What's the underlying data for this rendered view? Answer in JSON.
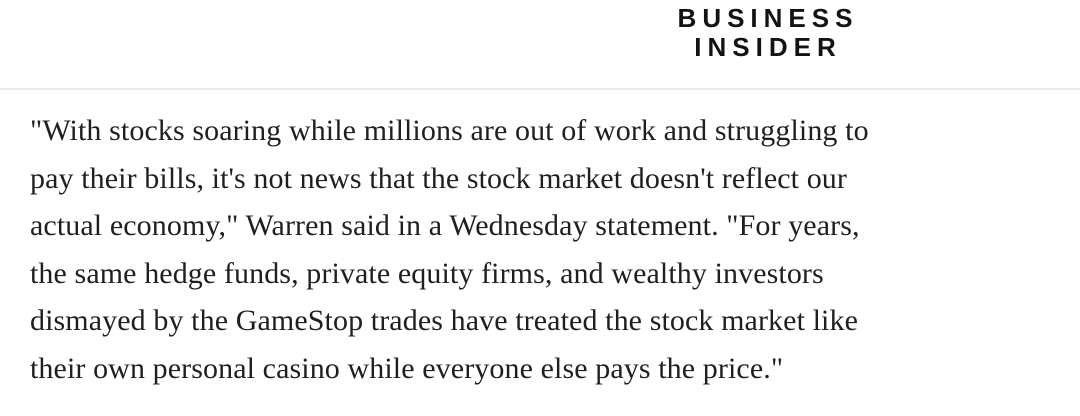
{
  "masthead": {
    "logo_line1": "BUSINESS",
    "logo_line2": "INSIDER",
    "logo_color": "#131313"
  },
  "divider": {
    "color": "#e9e9e9"
  },
  "article": {
    "text_color": "#211e1e",
    "lines": [
      "\"With stocks soaring while millions are out of work and struggling to",
      "pay their bills, it's not news that the stock market doesn't reflect our",
      "actual economy,\" Warren said in a Wednesday statement. \"For years,",
      "the same hedge funds, private equity firms, and wealthy investors",
      "dismayed by the GameStop trades have treated the stock market like",
      "their own personal casino while everyone else pays the price.\""
    ]
  }
}
